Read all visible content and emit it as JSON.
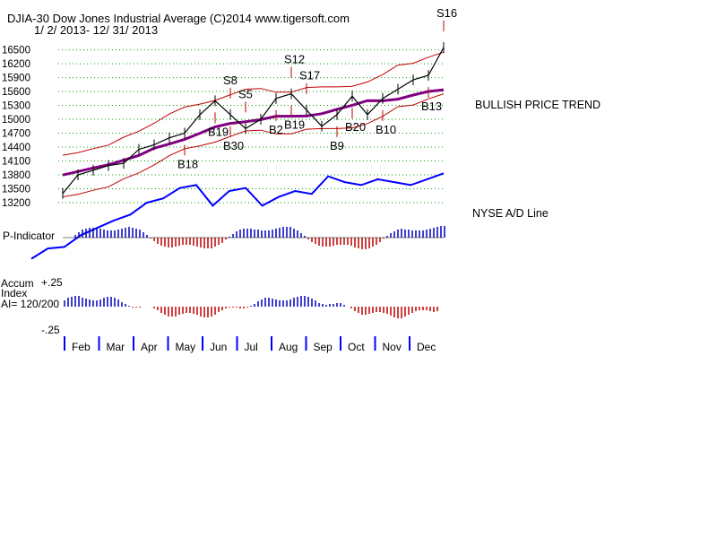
{
  "header": {
    "title": "DJIA-30  Dow Jones Industrial Average   (C)2014 www.tigersoft.com",
    "date_range": "1/ 2/ 2013- 12/ 31/ 2013"
  },
  "chart_data": {
    "type": "line",
    "title": "DJIA-30  Dow Jones Industrial Average",
    "y_ticks": [
      16500,
      16200,
      15900,
      15600,
      15300,
      15000,
      14700,
      14400,
      14100,
      13800,
      13500,
      13200
    ],
    "ylim": [
      13200,
      16550
    ],
    "months": [
      "Feb",
      "Mar",
      "Apr",
      "May",
      "Jun",
      "Jul",
      "Aug",
      "Sep",
      "Oct",
      "Nov",
      "Dec"
    ],
    "x": [
      1,
      2,
      3,
      4,
      5,
      6,
      7,
      8,
      9,
      10,
      11,
      12,
      13,
      14,
      15,
      16,
      17,
      18,
      19,
      20,
      21,
      22,
      23,
      24,
      25,
      26
    ],
    "series": [
      {
        "values": [
          13400,
          13800,
          13900,
          14000,
          14050,
          14350,
          14450,
          14600,
          14700,
          15100,
          15400,
          15100,
          14800,
          15000,
          15450,
          15550,
          15200,
          14850,
          15100,
          15500,
          15100,
          15450,
          15650,
          15850,
          15950,
          16550
        ]
      }
    ],
    "signals": [
      {
        "label": "S8",
        "dir": "sell",
        "xi": 11
      },
      {
        "label": "S5",
        "dir": "sell",
        "xi": 12
      },
      {
        "label": "S17",
        "dir": "sell",
        "xi": 16
      },
      {
        "label": "S12",
        "dir": "sell",
        "xi": 15
      },
      {
        "label": "S16",
        "dir": "sell",
        "xi": 25
      },
      {
        "label": "B18",
        "dir": "buy",
        "xi": 8
      },
      {
        "label": "B19",
        "dir": "buy",
        "xi": 10
      },
      {
        "label": "B30",
        "dir": "buy",
        "xi": 11
      },
      {
        "label": "B2",
        "dir": "buy",
        "xi": 14
      },
      {
        "label": "B19",
        "dir": "buy",
        "xi": 15
      },
      {
        "label": "B9",
        "dir": "buy",
        "xi": 18
      },
      {
        "label": "B20",
        "dir": "buy",
        "xi": 19
      },
      {
        "label": "B10",
        "dir": "buy",
        "xi": 21
      },
      {
        "label": "B13",
        "dir": "buy",
        "xi": 24
      }
    ],
    "annotations": [
      "BULLISH PRICE TREND",
      "NYSE A/D Line"
    ],
    "panels": {
      "p_indicator": "P-Indicator",
      "accum_index": [
        "Accum",
        "Index",
        "AI= 120/200"
      ],
      "accum_ticks": [
        "+.25",
        "-.25"
      ]
    },
    "ad_line": [
      0.5,
      0.85,
      0.9,
      1.3,
      1.55,
      1.8,
      2.0,
      2.4,
      2.55,
      2.9,
      3.0,
      2.3,
      2.8,
      2.9,
      2.3,
      2.6,
      2.8,
      2.7,
      3.3,
      3.1,
      3.0,
      3.2,
      3.1,
      3.0,
      3.2,
      3.4
    ],
    "colors": {
      "price": "#000000",
      "bands": "#c00000",
      "ma": "#800080",
      "ad_line": "#0000ff",
      "positive": "#0000c0",
      "negative": "#c00000",
      "grid": "#00a000"
    }
  }
}
